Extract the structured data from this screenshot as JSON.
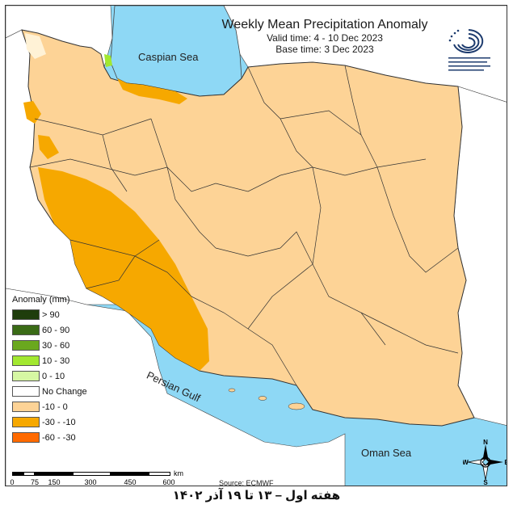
{
  "header": {
    "title": "Weekly Mean Precipitation Anomaly",
    "valid_time": "Valid time: 4 - 10 Dec 2023",
    "base_time": "Base time: 3 Dec 2023"
  },
  "logo": {
    "icon": "research-institute-spiral-logo",
    "text_lines": [
      "پژوهشگاه هواشناسی و علوم جو",
      "Research Institute of Meteorology",
      "and Atmospheric Science",
      "پژوهشکده اقلیم‌شناسی و تغییر اقلیم"
    ]
  },
  "map_labels": {
    "caspian": "Caspian Sea",
    "persian_gulf": "Persian Gulf",
    "oman_sea": "Oman Sea"
  },
  "legend": {
    "title": "Anomaly (mm)",
    "items": [
      {
        "label": "> 90",
        "color": "#1f3d0c"
      },
      {
        "label": "60 - 90",
        "color": "#3a6b16"
      },
      {
        "label": "30 - 60",
        "color": "#6aa81e"
      },
      {
        "label": "10 - 30",
        "color": "#a2e830"
      },
      {
        "label": "0 - 10",
        "color": "#d6f7a3"
      },
      {
        "label": "No Change",
        "color": "#ffffff"
      },
      {
        "label": "-10 - 0",
        "color": "#fdd396"
      },
      {
        "label": "-30 - -10",
        "color": "#f6a800"
      },
      {
        "label": "-60 - -30",
        "color": "#ff6a00"
      }
    ]
  },
  "scale": {
    "ticks": [
      "0",
      "75",
      "150",
      "300",
      "450",
      "600"
    ],
    "unit": "km"
  },
  "compass": {
    "n": "N",
    "s": "S",
    "e": "E",
    "w": "W"
  },
  "source": "Source: ECMWF",
  "caption": "هفته اول – ۱۳ تا ۱۹ آذر ۱۴۰۲",
  "colors": {
    "sea": "#8ed8f5",
    "land_outside": "#ffffff",
    "iran_base": "#fdd396",
    "dry_strong": "#f6a800",
    "wet_light": "#a2e830"
  }
}
